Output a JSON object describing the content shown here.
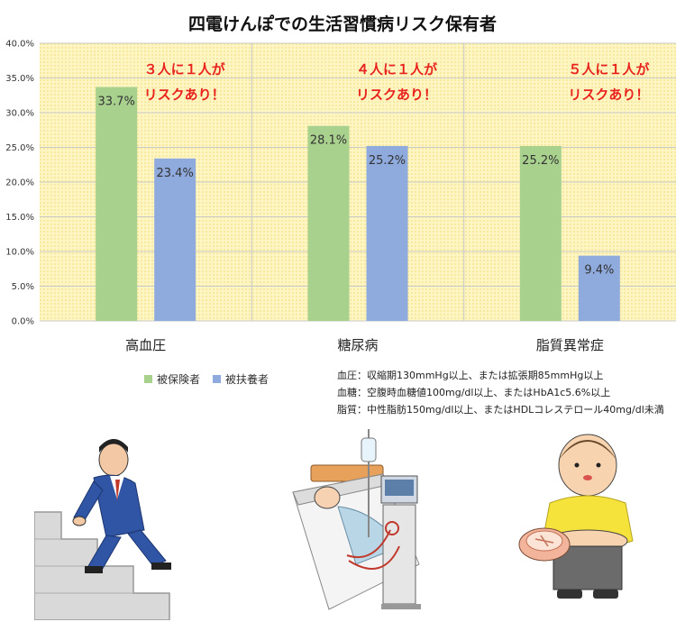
{
  "chart_data": {
    "type": "bar",
    "title": "四電けんぽでの生活習慣病リスク保有者",
    "categories": [
      "高血圧",
      "糖尿病",
      "脂質異常症"
    ],
    "series": [
      {
        "name": "被保険者",
        "values": [
          33.7,
          28.1,
          25.2
        ],
        "color": "#a9d18e"
      },
      {
        "name": "被扶養者",
        "values": [
          23.4,
          25.2,
          9.4
        ],
        "color": "#8faadc"
      }
    ],
    "value_labels": [
      [
        "33.7%",
        "23.4%"
      ],
      [
        "28.1%",
        "25.2%"
      ],
      [
        "25.2%",
        "9.4%"
      ]
    ],
    "ylim": [
      0,
      40
    ],
    "yticks": [
      0,
      5,
      10,
      15,
      20,
      25,
      30,
      35,
      40
    ],
    "ytick_labels": [
      "0.0%",
      "5.0%",
      "10.0%",
      "15.0%",
      "20.0%",
      "25.0%",
      "30.0%",
      "35.0%",
      "40.0%"
    ],
    "grid": true,
    "legend": "bottom-left",
    "plot_background": "#fdf6c3",
    "annotations": [
      {
        "line1": "３人に１人が",
        "line2": "リスクあり！"
      },
      {
        "line1": "４人に１人が",
        "line2": "リスクあり！"
      },
      {
        "line1": "５人に１人が",
        "line2": "リスクあり！"
      }
    ]
  },
  "notes": [
    "血圧：収縮期130mmHg以上、または拡張期85mmHg以上",
    "血糖：空腹時血糖値100mg/dl以上、またはHbA1c5.6%以上",
    "脂質：中性脂肪150mg/dl以上、またはHDLコレステロール40mg/dl未満"
  ],
  "illustrations": [
    "man-climbing-stairs-illustration",
    "dialysis-patient-illustration",
    "overweight-child-illustration"
  ]
}
